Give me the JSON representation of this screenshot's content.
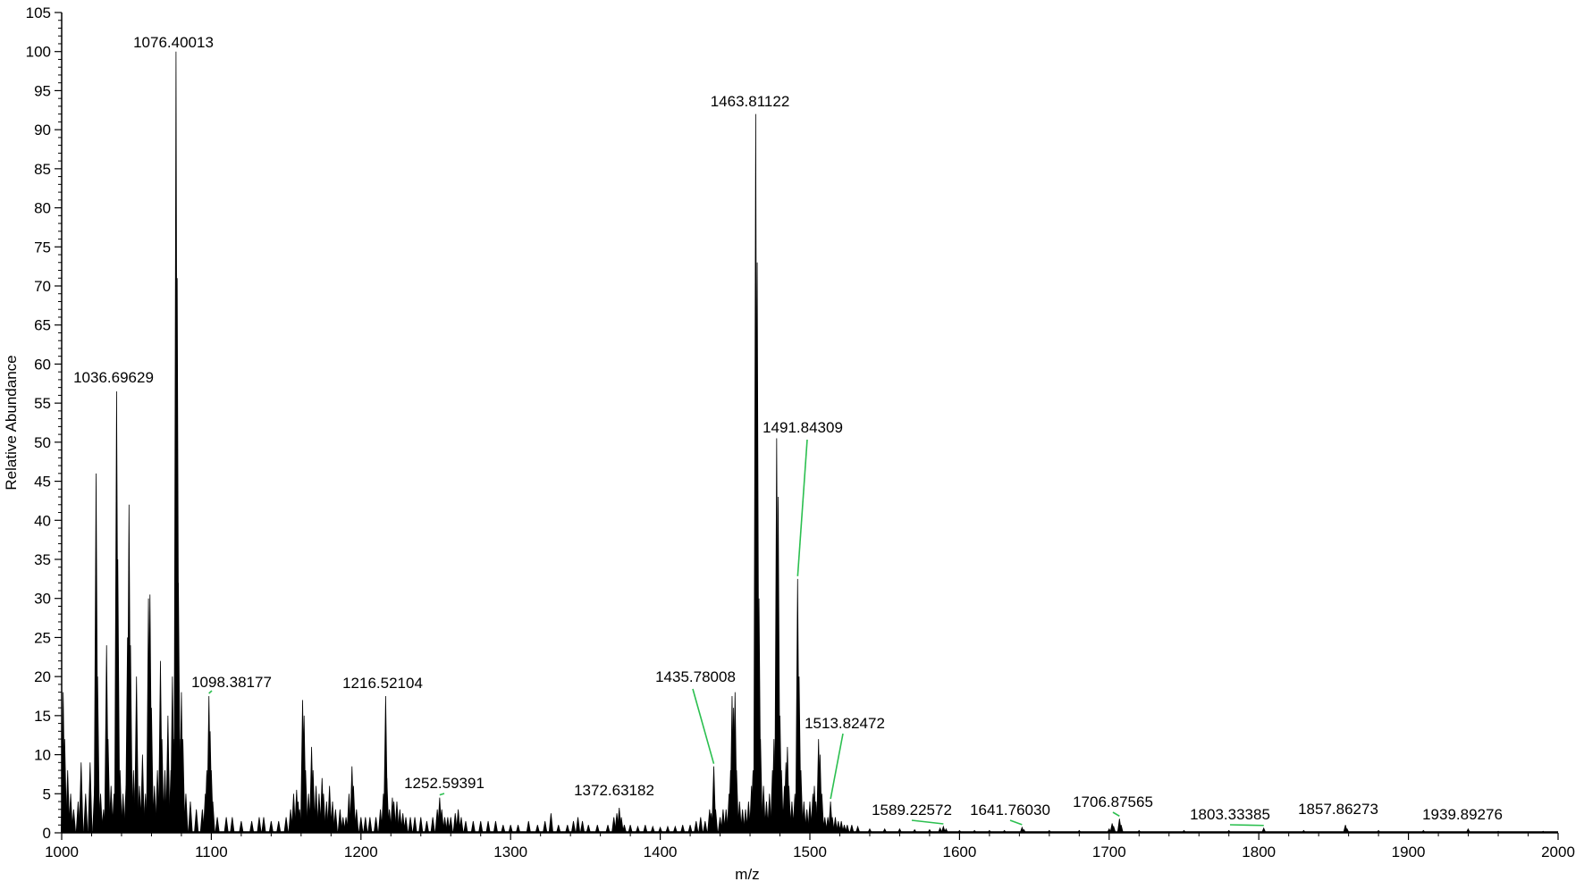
{
  "chart_data": {
    "type": "line",
    "title": "",
    "xlabel": "m/z",
    "ylabel": "Relative Abundance",
    "xlim": [
      1000,
      2000
    ],
    "ylim": [
      0,
      105
    ],
    "x_ticks": [
      "1000",
      "1100",
      "1200",
      "1300",
      "1400",
      "1500",
      "1600",
      "1700",
      "1800",
      "1900",
      "2000"
    ],
    "y_ticks": [
      "0",
      "5",
      "10",
      "15",
      "20",
      "25",
      "30",
      "35",
      "40",
      "45",
      "50",
      "55",
      "60",
      "65",
      "70",
      "75",
      "80",
      "85",
      "90",
      "95",
      "100",
      "105"
    ],
    "grid": false,
    "series": [
      {
        "values_note": "",
        "peaks": [
          [
            1001,
            18
          ],
          [
            1002,
            12
          ],
          [
            1004,
            8
          ],
          [
            1006,
            5
          ],
          [
            1008,
            3
          ],
          [
            1011,
            4
          ],
          [
            1013,
            9
          ],
          [
            1016,
            5
          ],
          [
            1019,
            9
          ],
          [
            1022,
            6
          ],
          [
            1023,
            46
          ],
          [
            1024,
            20
          ],
          [
            1026,
            5
          ],
          [
            1028,
            3
          ],
          [
            1030,
            24
          ],
          [
            1031,
            12
          ],
          [
            1033,
            6
          ],
          [
            1035,
            5
          ],
          [
            1036.7,
            56.5
          ],
          [
            1037.5,
            35
          ],
          [
            1039,
            8
          ],
          [
            1041,
            5
          ],
          [
            1043,
            6
          ],
          [
            1044,
            25
          ],
          [
            1045,
            42
          ],
          [
            1046,
            24
          ],
          [
            1048,
            8
          ],
          [
            1050,
            20
          ],
          [
            1052,
            6
          ],
          [
            1054,
            10
          ],
          [
            1056,
            5
          ],
          [
            1058,
            30
          ],
          [
            1059,
            30.5
          ],
          [
            1060,
            16
          ],
          [
            1062,
            6
          ],
          [
            1064,
            8
          ],
          [
            1066,
            22
          ],
          [
            1067,
            12
          ],
          [
            1069,
            8
          ],
          [
            1071,
            15
          ],
          [
            1073,
            8
          ],
          [
            1074,
            20
          ],
          [
            1075,
            12
          ],
          [
            1076.4,
            100
          ],
          [
            1077.2,
            71
          ],
          [
            1078,
            32
          ],
          [
            1079,
            12
          ],
          [
            1080,
            18
          ],
          [
            1081,
            12
          ],
          [
            1083,
            5
          ],
          [
            1086,
            4
          ],
          [
            1090,
            3
          ],
          [
            1094,
            3
          ],
          [
            1096,
            5
          ],
          [
            1097,
            8
          ],
          [
            1098.4,
            17.5
          ],
          [
            1099.2,
            13
          ],
          [
            1100,
            8
          ],
          [
            1101,
            4
          ],
          [
            1104,
            2
          ],
          [
            1110,
            2
          ],
          [
            1114,
            2
          ],
          [
            1120,
            1.5
          ],
          [
            1127,
            1.5
          ],
          [
            1132,
            2
          ],
          [
            1135,
            2
          ],
          [
            1140,
            1.5
          ],
          [
            1145,
            1.5
          ],
          [
            1150,
            2
          ],
          [
            1153,
            3
          ],
          [
            1155,
            5
          ],
          [
            1157,
            5.5
          ],
          [
            1158,
            4
          ],
          [
            1159,
            3
          ],
          [
            1161,
            17
          ],
          [
            1162,
            15
          ],
          [
            1163,
            8
          ],
          [
            1165,
            5
          ],
          [
            1167,
            11
          ],
          [
            1168,
            8
          ],
          [
            1170,
            6
          ],
          [
            1172,
            5
          ],
          [
            1174,
            7
          ],
          [
            1175,
            5
          ],
          [
            1177,
            4
          ],
          [
            1179,
            6
          ],
          [
            1181,
            4
          ],
          [
            1183,
            3
          ],
          [
            1186,
            3
          ],
          [
            1188,
            2
          ],
          [
            1190,
            2
          ],
          [
            1192,
            5
          ],
          [
            1194,
            8.5
          ],
          [
            1195,
            6
          ],
          [
            1197,
            3
          ],
          [
            1200,
            2
          ],
          [
            1203,
            2
          ],
          [
            1206,
            2
          ],
          [
            1210,
            2
          ],
          [
            1213,
            3
          ],
          [
            1215,
            5
          ],
          [
            1216.5,
            17.5
          ],
          [
            1217.3,
            7
          ],
          [
            1219,
            3
          ],
          [
            1221,
            4.5
          ],
          [
            1222,
            4
          ],
          [
            1224,
            4
          ],
          [
            1226,
            3
          ],
          [
            1228,
            2.5
          ],
          [
            1230,
            2
          ],
          [
            1233,
            2
          ],
          [
            1236,
            2
          ],
          [
            1240,
            2
          ],
          [
            1244,
            1.5
          ],
          [
            1248,
            2
          ],
          [
            1251,
            3
          ],
          [
            1252.6,
            4.5
          ],
          [
            1254,
            3
          ],
          [
            1256,
            2
          ],
          [
            1258,
            2
          ],
          [
            1260,
            2
          ],
          [
            1263,
            2.5
          ],
          [
            1265,
            3
          ],
          [
            1267,
            2
          ],
          [
            1270,
            1.5
          ],
          [
            1275,
            1.5
          ],
          [
            1280,
            1.5
          ],
          [
            1285,
            1.5
          ],
          [
            1290,
            1.5
          ],
          [
            1295,
            1
          ],
          [
            1300,
            1
          ],
          [
            1305,
            1
          ],
          [
            1312,
            1.5
          ],
          [
            1318,
            1
          ],
          [
            1323,
            1.5
          ],
          [
            1327,
            2.5
          ],
          [
            1332,
            1
          ],
          [
            1338,
            1
          ],
          [
            1342,
            1.5
          ],
          [
            1345,
            2
          ],
          [
            1348,
            1.5
          ],
          [
            1352,
            1
          ],
          [
            1358,
            1
          ],
          [
            1365,
            1
          ],
          [
            1369,
            2
          ],
          [
            1371,
            2.5
          ],
          [
            1372.6,
            3.2
          ],
          [
            1374,
            2
          ],
          [
            1376,
            1
          ],
          [
            1380,
            1
          ],
          [
            1385,
            0.8
          ],
          [
            1390,
            1
          ],
          [
            1395,
            0.8
          ],
          [
            1400,
            0.7
          ],
          [
            1405,
            0.8
          ],
          [
            1410,
            0.8
          ],
          [
            1415,
            1
          ],
          [
            1420,
            1
          ],
          [
            1424,
            1.5
          ],
          [
            1427,
            2
          ],
          [
            1430,
            1.5
          ],
          [
            1433,
            3
          ],
          [
            1434,
            2.5
          ],
          [
            1435.8,
            8.5
          ],
          [
            1437,
            3
          ],
          [
            1440,
            2
          ],
          [
            1442,
            3
          ],
          [
            1444,
            3
          ],
          [
            1446,
            5
          ],
          [
            1447,
            8
          ],
          [
            1448,
            17.5
          ],
          [
            1449,
            16
          ],
          [
            1450,
            18
          ],
          [
            1451,
            8
          ],
          [
            1453,
            4
          ],
          [
            1455,
            3
          ],
          [
            1457,
            3
          ],
          [
            1459,
            4
          ],
          [
            1461,
            6
          ],
          [
            1462,
            8
          ],
          [
            1463.8,
            92
          ],
          [
            1464.8,
            73
          ],
          [
            1466,
            30
          ],
          [
            1467,
            12
          ],
          [
            1469,
            6
          ],
          [
            1471,
            4
          ],
          [
            1473,
            5
          ],
          [
            1475,
            8
          ],
          [
            1476,
            12
          ],
          [
            1477.8,
            50.5
          ],
          [
            1478.8,
            43
          ],
          [
            1480,
            15
          ],
          [
            1481,
            8
          ],
          [
            1483,
            6
          ],
          [
            1484,
            9
          ],
          [
            1485,
            11
          ],
          [
            1486,
            6
          ],
          [
            1488,
            4
          ],
          [
            1490,
            5
          ],
          [
            1491.8,
            32.5
          ],
          [
            1492.8,
            20
          ],
          [
            1494,
            8
          ],
          [
            1496,
            4
          ],
          [
            1498,
            3
          ],
          [
            1500,
            4
          ],
          [
            1502,
            5
          ],
          [
            1503,
            6
          ],
          [
            1504,
            4
          ],
          [
            1505.8,
            12
          ],
          [
            1506.8,
            10
          ],
          [
            1508,
            5
          ],
          [
            1510,
            2
          ],
          [
            1512,
            2
          ],
          [
            1513.8,
            4
          ],
          [
            1515,
            2
          ],
          [
            1517,
            2
          ],
          [
            1519,
            1.5
          ],
          [
            1521,
            1.5
          ],
          [
            1523,
            1
          ],
          [
            1525,
            1
          ],
          [
            1528,
            1
          ],
          [
            1532,
            0.8
          ],
          [
            1540,
            0.5
          ],
          [
            1550,
            0.5
          ],
          [
            1560,
            0.5
          ],
          [
            1570,
            0.4
          ],
          [
            1580,
            0.4
          ],
          [
            1587,
            0.6
          ],
          [
            1589.2,
            0.8
          ],
          [
            1591,
            0.5
          ],
          [
            1600,
            0.3
          ],
          [
            1610,
            0.3
          ],
          [
            1620,
            0.3
          ],
          [
            1630,
            0.3
          ],
          [
            1641.8,
            0.7
          ],
          [
            1643,
            0.4
          ],
          [
            1660,
            0.3
          ],
          [
            1680,
            0.3
          ],
          [
            1700,
            0.5
          ],
          [
            1702,
            1.2
          ],
          [
            1703,
            0.8
          ],
          [
            1706.9,
            1.8
          ],
          [
            1708,
            1
          ],
          [
            1720,
            0.3
          ],
          [
            1750,
            0.3
          ],
          [
            1780,
            0.3
          ],
          [
            1803.3,
            0.6
          ],
          [
            1830,
            0.3
          ],
          [
            1857.9,
            1
          ],
          [
            1859,
            0.5
          ],
          [
            1880,
            0.3
          ],
          [
            1910,
            0.3
          ],
          [
            1939.9,
            0.5
          ],
          [
            1960,
            0.2
          ],
          [
            1990,
            0.2
          ]
        ]
      }
    ],
    "annotations": [
      {
        "label": "1076.40013",
        "x": 1076.40013,
        "y": 100,
        "leader": false
      },
      {
        "label": "1036.69629",
        "x": 1036.69629,
        "y": 56.5,
        "leader": false
      },
      {
        "label": "1098.38177",
        "x": 1098.38177,
        "y": 17.5,
        "leader": true
      },
      {
        "label": "1216.52104",
        "x": 1216.52104,
        "y": 17.5,
        "leader": false
      },
      {
        "label": "1252.59391",
        "x": 1252.59391,
        "y": 4.5,
        "leader": true
      },
      {
        "label": "1372.63182",
        "x": 1372.63182,
        "y": 3.2,
        "leader": false
      },
      {
        "label": "1435.78008",
        "x": 1435.78008,
        "y": 8.5,
        "leader": true
      },
      {
        "label": "1463.81122",
        "x": 1463.81122,
        "y": 92,
        "leader": false
      },
      {
        "label": "1491.84309",
        "x": 1491.84309,
        "y": 32.5,
        "leader": true
      },
      {
        "label": "1513.82472",
        "x": 1513.82472,
        "y": 4,
        "leader": true
      },
      {
        "label": "1589.22572",
        "x": 1589.22572,
        "y": 0.8,
        "leader": true
      },
      {
        "label": "1641.76030",
        "x": 1641.7603,
        "y": 0.7,
        "leader": true
      },
      {
        "label": "1706.87565",
        "x": 1706.87565,
        "y": 1.8,
        "leader": true
      },
      {
        "label": "1803.33385",
        "x": 1803.33385,
        "y": 0.6,
        "leader": true
      },
      {
        "label": "1857.86273",
        "x": 1857.86273,
        "y": 1,
        "leader": false
      },
      {
        "label": "1939.89276",
        "x": 1939.89276,
        "y": 0.5,
        "leader": false
      }
    ],
    "colors": {
      "trace": "#000000",
      "leader": "#2bbf4f",
      "axis": "#000000"
    }
  }
}
